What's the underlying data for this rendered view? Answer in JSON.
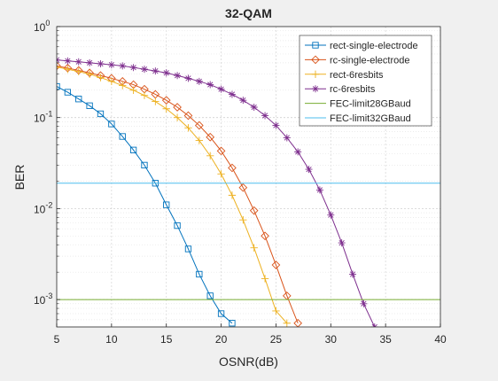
{
  "chart_data": {
    "type": "line",
    "title": "32-QAM",
    "xlabel": "OSNR(dB)",
    "ylabel": "BER",
    "xlim": [
      5,
      40
    ],
    "ylim": [
      0.0005,
      1
    ],
    "yscale": "log",
    "grid": true,
    "minor_grid": true,
    "legend_position": "top-right",
    "x_ticks": [
      "5",
      "10",
      "15",
      "20",
      "25",
      "30",
      "35",
      "40"
    ],
    "y_ticks": [
      {
        "base": "10",
        "exp": "0"
      },
      {
        "base": "10",
        "exp": "-1"
      },
      {
        "base": "10",
        "exp": "-2"
      },
      {
        "base": "10",
        "exp": "-3"
      }
    ],
    "series": [
      {
        "name": "rect-single-electrode",
        "color": "#0072bd",
        "marker": "square",
        "x": [
          5,
          6,
          7,
          8,
          9,
          10,
          11,
          12,
          13,
          14,
          15,
          16,
          17,
          18,
          19,
          20,
          21
        ],
        "y": [
          0.22,
          0.19,
          0.16,
          0.135,
          0.11,
          0.085,
          0.062,
          0.044,
          0.03,
          0.019,
          0.011,
          0.0065,
          0.0036,
          0.0019,
          0.0011,
          0.0007,
          0.00055
        ]
      },
      {
        "name": "rc-single-electrode",
        "color": "#d95319",
        "marker": "diamond",
        "x": [
          5,
          6,
          7,
          8,
          9,
          10,
          11,
          12,
          13,
          14,
          15,
          16,
          17,
          18,
          19,
          20,
          21,
          22,
          23,
          24,
          25,
          26,
          27
        ],
        "y": [
          0.37,
          0.35,
          0.33,
          0.31,
          0.29,
          0.27,
          0.25,
          0.23,
          0.205,
          0.18,
          0.155,
          0.13,
          0.105,
          0.082,
          0.061,
          0.043,
          0.028,
          0.017,
          0.0095,
          0.005,
          0.0024,
          0.0011,
          0.00055
        ]
      },
      {
        "name": "rect-6resbits",
        "color": "#edb120",
        "marker": "plus",
        "x": [
          5,
          6,
          7,
          8,
          9,
          10,
          11,
          12,
          13,
          14,
          15,
          16,
          17,
          18,
          19,
          20,
          21,
          22,
          23,
          24,
          25,
          26
        ],
        "y": [
          0.36,
          0.34,
          0.32,
          0.3,
          0.275,
          0.25,
          0.225,
          0.2,
          0.175,
          0.15,
          0.125,
          0.1,
          0.077,
          0.056,
          0.038,
          0.024,
          0.014,
          0.0075,
          0.0037,
          0.0017,
          0.00075,
          0.00055
        ]
      },
      {
        "name": "rc-6resbits",
        "color": "#7e2f8e",
        "marker": "asterisk",
        "x": [
          5,
          6,
          7,
          8,
          9,
          10,
          11,
          12,
          13,
          14,
          15,
          16,
          17,
          18,
          19,
          20,
          21,
          22,
          23,
          24,
          25,
          26,
          27,
          28,
          29,
          30,
          31,
          32,
          33,
          34
        ],
        "y": [
          0.43,
          0.42,
          0.41,
          0.4,
          0.39,
          0.38,
          0.37,
          0.355,
          0.34,
          0.325,
          0.31,
          0.29,
          0.27,
          0.25,
          0.23,
          0.205,
          0.18,
          0.155,
          0.13,
          0.105,
          0.082,
          0.06,
          0.042,
          0.027,
          0.016,
          0.0085,
          0.0042,
          0.0019,
          0.0009,
          0.0005
        ]
      },
      {
        "name": "FEC-limit28GBaud",
        "color": "#77ac30",
        "marker": "none",
        "x": [
          5,
          40
        ],
        "y": [
          0.001,
          0.001
        ]
      },
      {
        "name": "FEC-limit32GBaud",
        "color": "#4dbeee",
        "marker": "none",
        "x": [
          5,
          40
        ],
        "y": [
          0.019,
          0.019
        ]
      }
    ]
  }
}
